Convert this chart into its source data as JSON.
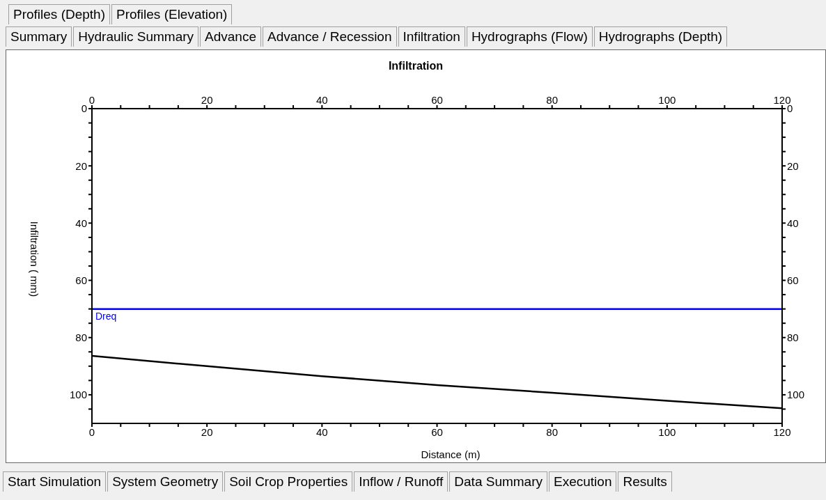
{
  "chart_data": {
    "type": "line",
    "title": "Infiltration",
    "xlabel": "Distance (m)",
    "ylabel": "Infiltration ( mm)",
    "annotations": [
      "Profiles (Depth)",
      "Profiles (Elevation)",
      "Summary",
      "Hydraulic Summary",
      "Advance",
      "Advance / Recession",
      "Infiltration",
      "Hydrographs (Flow)",
      "Hydrographs (Depth)",
      "Start Simulation",
      "System Geometry",
      "Soil Crop Properties",
      "Inflow / Runoff",
      "Data Summary",
      "Execution",
      "Results"
    ],
    "x": [
      0,
      20,
      40,
      60,
      80,
      100,
      120
    ],
    "series": [
      {
        "color": "#000000",
        "values": [
          86.4,
          90,
          93.5,
          96.6,
          99.3,
          102.1,
          104.7
        ]
      }
    ],
    "xlim": [
      0,
      120
    ],
    "xticks": [
      0,
      {
        "value": 5,
        "label": null
      },
      {
        "value": 10,
        "label": null
      },
      {
        "value": 15,
        "label": null
      },
      20,
      {
        "value": 25,
        "label": null
      },
      {
        "value": 30,
        "label": null
      },
      {
        "value": 35,
        "label": null
      },
      40,
      {
        "value": 45,
        "label": null
      },
      {
        "value": 50,
        "label": null
      },
      {
        "value": 55,
        "label": null
      },
      60,
      {
        "value": 65,
        "label": null
      },
      {
        "value": 70,
        "label": null
      },
      {
        "value": 75,
        "label": null
      },
      80,
      {
        "value": 85,
        "label": null
      },
      {
        "value": 90,
        "label": null
      },
      {
        "value": 95,
        "label": null
      },
      100,
      {
        "value": 105,
        "label": null
      },
      {
        "value": 110,
        "label": null
      },
      {
        "value": 115,
        "label": null
      },
      120
    ],
    "x2lim": [
      0,
      120
    ],
    "x2ticks": [
      0,
      {
        "value": 5,
        "label": null
      },
      {
        "value": 10,
        "label": null
      },
      {
        "value": 15,
        "label": null
      },
      20,
      {
        "value": 25,
        "label": null
      },
      {
        "value": 30,
        "label": null
      },
      {
        "value": 35,
        "label": null
      },
      40,
      {
        "value": 45,
        "label": null
      },
      {
        "value": 50,
        "label": null
      },
      {
        "value": 55,
        "label": null
      },
      60,
      {
        "value": 65,
        "label": null
      },
      {
        "value": 70,
        "label": null
      },
      {
        "value": 75,
        "label": null
      },
      80,
      {
        "value": 85,
        "label": null
      },
      {
        "value": 90,
        "label": null
      },
      {
        "value": 95,
        "label": null
      },
      100,
      {
        "value": 105,
        "label": null
      },
      {
        "value": 110,
        "label": null
      },
      {
        "value": 115,
        "label": null
      },
      120
    ],
    "ylim": [
      110,
      0
    ],
    "yticks": [
      0,
      {
        "value": 5,
        "label": null
      },
      {
        "value": 10,
        "label": null
      },
      {
        "value": 15,
        "label": null
      },
      20,
      {
        "value": 25,
        "label": null
      },
      {
        "value": 30,
        "label": null
      },
      {
        "value": 35,
        "label": null
      },
      40,
      {
        "value": 45,
        "label": null
      },
      {
        "value": 50,
        "label": null
      },
      {
        "value": 55,
        "label": null
      },
      60,
      {
        "value": 65,
        "label": null
      },
      {
        "value": 70,
        "label": null
      },
      {
        "value": 75,
        "label": null
      },
      80,
      {
        "value": 85,
        "label": null
      },
      {
        "value": 90,
        "label": null
      },
      {
        "value": 95,
        "label": null
      },
      100,
      {
        "value": 105,
        "label": null
      }
    ],
    "y2lim": [
      110,
      0
    ],
    "y2ticks": [
      0,
      {
        "value": 5,
        "label": null
      },
      {
        "value": 10,
        "label": null
      },
      {
        "value": 15,
        "label": null
      },
      20,
      {
        "value": 25,
        "label": null
      },
      {
        "value": 30,
        "label": null
      },
      {
        "value": 35,
        "label": null
      },
      40,
      {
        "value": 45,
        "label": null
      },
      {
        "value": 50,
        "label": null
      },
      {
        "value": 55,
        "label": null
      },
      60,
      {
        "value": 65,
        "label": null
      },
      {
        "value": 70,
        "label": null
      },
      {
        "value": 75,
        "label": null
      },
      80,
      {
        "value": 85,
        "label": null
      },
      {
        "value": 90,
        "label": null
      },
      {
        "value": 95,
        "label": null
      },
      100,
      {
        "value": 105,
        "label": null
      }
    ],
    "ref_lines": [
      {
        "axis": "y",
        "value": 70,
        "label": "Dreq",
        "color": "#0000ff"
      }
    ],
    "grid": false,
    "marker": "none",
    "line_style": "solid"
  }
}
